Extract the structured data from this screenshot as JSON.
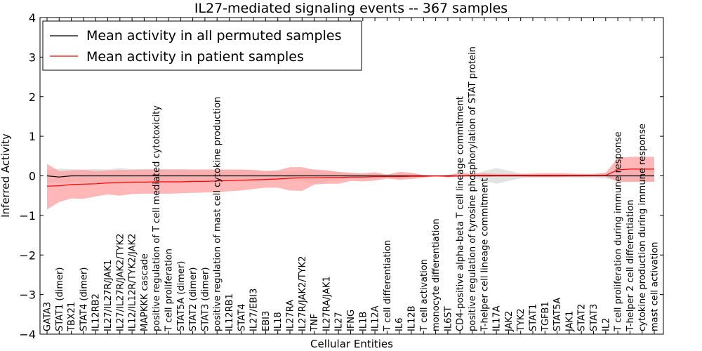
{
  "chart_data": {
    "type": "line",
    "title": "IL27-mediated signaling events -- 367 samples",
    "xlabel": "Cellular Entities",
    "ylabel": "Inferred Activity",
    "ylim": [
      -4,
      4
    ],
    "yticks": [
      -4,
      -3,
      -2,
      -1,
      0,
      1,
      2,
      3,
      4
    ],
    "legend_position": "top-left",
    "colors": {
      "permuted_line": "#000000",
      "permuted_band": "#cccccc",
      "patient_line": "#ff0000",
      "patient_band": "#ff9999"
    },
    "categories": [
      "GATA3",
      "STAT1 (dimer)",
      "TBX21",
      "STAT4 (dimer)",
      "IL12RB2",
      "IL27/IL27R/JAK1",
      "IL27/IL27R/JAK2/TYK2",
      "IL12/IL12R/TYK2/JAK2",
      "MAPKKK cascade",
      "positive regulation of T cell mediated cytotoxicity",
      "T cell proliferation",
      "STAT5A (dimer)",
      "STAT2 (dimer)",
      "STAT3 (dimer)",
      "positive regulation of mast cell cytokine production",
      "IL12RB1",
      "STAT4",
      "IL27/EBI3",
      "EBI3",
      "IL18",
      "IL27RA",
      "IL27R/JAK2/TYK2",
      "TNF",
      "IL27RA/JAK1",
      "IL27",
      "IFNG",
      "IL1B",
      "IL12A",
      "T cell differentiation",
      "IL6",
      "IL12B",
      "T cell activation",
      "monocyte differentiation",
      "IL6ST",
      "CD4-positive alpha-beta T cell lineage commitment",
      "positive regulation of tyrosine phosphorylation of STAT protein",
      "T-helper cell lineage commitment",
      "IL17A",
      "JAK2",
      "TYK2",
      "STAT1",
      "TGFB1",
      "STAT5A",
      "JAK1",
      "STAT2",
      "STAT3",
      "IL2",
      "T cell proliferation during immune response",
      "T-helper 2 cell differentiation",
      "cytokine production during immune response",
      "mast cell activation"
    ],
    "series": [
      {
        "name": "Mean activity in all permuted samples",
        "values": [
          0.0,
          -0.03,
          0.0,
          0.0,
          0.0,
          0.0,
          0.0,
          0.0,
          0.0,
          0.0,
          0.0,
          0.0,
          0.0,
          0.0,
          0.0,
          0.0,
          0.0,
          0.0,
          0.0,
          0.0,
          0.0,
          0.0,
          0.0,
          0.0,
          0.0,
          0.0,
          0.0,
          0.0,
          0.0,
          0.0,
          0.0,
          0.0,
          0.0,
          0.0,
          0.0,
          0.0,
          0.0,
          0.0,
          0.0,
          0.0,
          0.0,
          0.0,
          0.0,
          0.0,
          0.0,
          0.0,
          0.0,
          0.0,
          0.0,
          0.0,
          0.0
        ],
        "lower": [
          -0.15,
          -0.18,
          -0.17,
          -0.16,
          -0.17,
          -0.18,
          -0.18,
          -0.17,
          -0.17,
          -0.17,
          -0.17,
          -0.17,
          -0.16,
          -0.16,
          -0.16,
          -0.15,
          -0.15,
          -0.14,
          -0.13,
          -0.12,
          -0.11,
          -0.14,
          -0.2,
          -0.14,
          -0.1,
          -0.07,
          -0.06,
          -0.05,
          -0.03,
          -0.06,
          -0.05,
          -0.02,
          0.0,
          -0.02,
          -0.02,
          -0.04,
          -0.12,
          -0.2,
          -0.13,
          -0.06,
          -0.04,
          -0.04,
          -0.04,
          -0.04,
          -0.05,
          -0.05,
          -0.07,
          -0.12,
          -0.14,
          -0.14,
          -0.14
        ],
        "upper": [
          0.15,
          0.18,
          0.17,
          0.16,
          0.17,
          0.16,
          0.2,
          0.17,
          0.17,
          0.17,
          0.17,
          0.17,
          0.16,
          0.16,
          0.16,
          0.15,
          0.15,
          0.14,
          0.13,
          0.12,
          0.11,
          0.14,
          0.17,
          0.14,
          0.1,
          0.07,
          0.06,
          0.05,
          0.03,
          0.06,
          0.05,
          0.02,
          0.0,
          0.02,
          0.02,
          0.04,
          0.12,
          0.2,
          0.13,
          0.06,
          0.04,
          0.04,
          0.04,
          0.04,
          0.05,
          0.05,
          0.07,
          0.12,
          0.14,
          0.14,
          0.14
        ]
      },
      {
        "name": "Mean activity in patient samples",
        "values": [
          -0.26,
          -0.25,
          -0.22,
          -0.21,
          -0.2,
          -0.18,
          -0.17,
          -0.16,
          -0.16,
          -0.15,
          -0.15,
          -0.15,
          -0.14,
          -0.14,
          -0.13,
          -0.12,
          -0.11,
          -0.1,
          -0.09,
          -0.08,
          -0.06,
          -0.05,
          -0.05,
          -0.04,
          -0.04,
          -0.03,
          -0.03,
          -0.02,
          -0.02,
          -0.02,
          -0.01,
          -0.01,
          0.0,
          -0.01,
          0.0,
          0.01,
          0.01,
          0.01,
          0.01,
          0.01,
          0.01,
          0.01,
          0.01,
          0.01,
          0.01,
          0.01,
          0.01,
          0.15,
          0.17,
          0.17,
          0.17
        ],
        "lower": [
          -0.85,
          -0.66,
          -0.57,
          -0.58,
          -0.52,
          -0.47,
          -0.5,
          -0.46,
          -0.45,
          -0.45,
          -0.45,
          -0.44,
          -0.43,
          -0.42,
          -0.41,
          -0.39,
          -0.37,
          -0.33,
          -0.3,
          -0.3,
          -0.37,
          -0.38,
          -0.22,
          -0.2,
          -0.2,
          -0.13,
          -0.14,
          -0.12,
          -0.07,
          -0.1,
          -0.08,
          -0.05,
          -0.01,
          -0.04,
          -0.02,
          -0.01,
          -0.03,
          -0.02,
          -0.02,
          -0.02,
          -0.03,
          -0.03,
          -0.03,
          -0.02,
          -0.02,
          -0.01,
          -0.01,
          -0.15,
          -0.15,
          -0.15,
          -0.15
        ],
        "upper": [
          0.3,
          0.12,
          0.14,
          0.15,
          0.12,
          0.14,
          0.15,
          0.15,
          0.16,
          0.16,
          0.16,
          0.16,
          0.16,
          0.16,
          0.16,
          0.16,
          0.16,
          0.15,
          0.12,
          0.14,
          0.22,
          0.22,
          0.15,
          0.14,
          0.1,
          0.08,
          0.06,
          0.09,
          0.03,
          0.1,
          0.08,
          0.02,
          0.01,
          0.02,
          0.08,
          0.05,
          0.07,
          0.05,
          0.05,
          0.05,
          0.06,
          0.07,
          0.07,
          0.06,
          0.05,
          0.05,
          0.08,
          0.45,
          0.48,
          0.48,
          0.48
        ]
      }
    ]
  }
}
